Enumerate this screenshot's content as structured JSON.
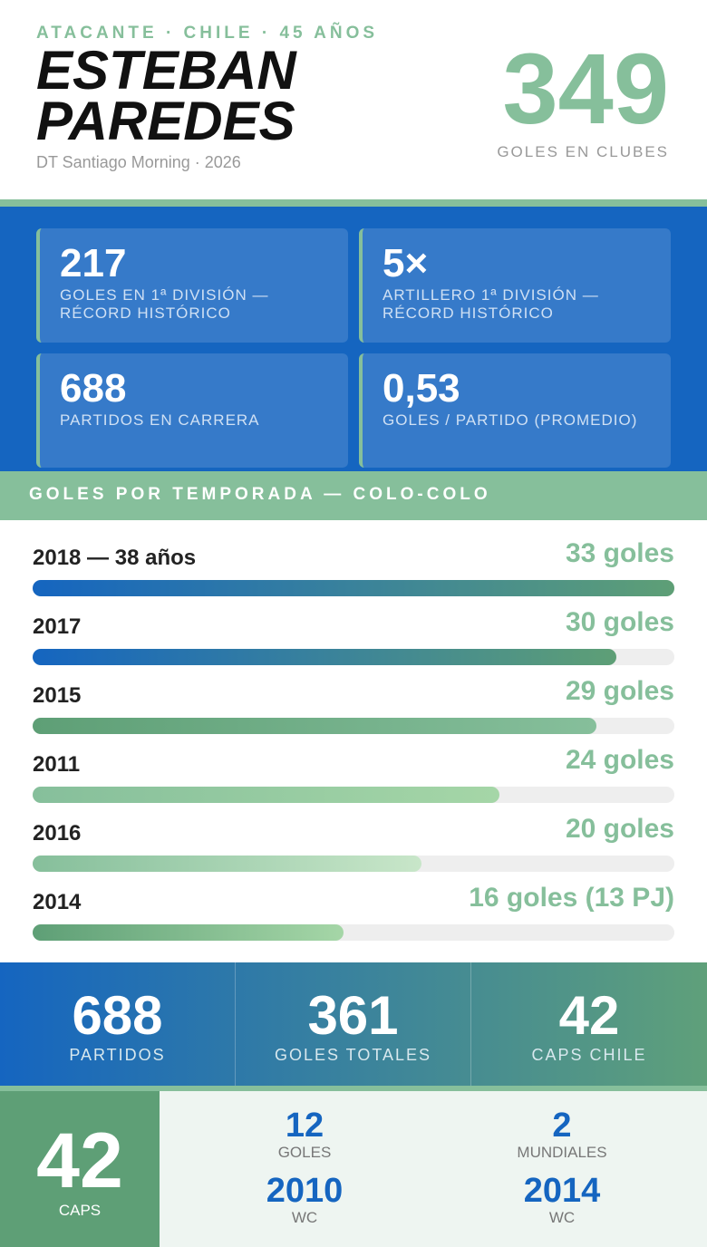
{
  "header": {
    "kicker": "ATACANTE · CHILE · 45 AÑOS",
    "name_line1": "ESTEBAN",
    "name_line2": "PAREDES",
    "subtitle": "DT Santiago Morning · 2026",
    "big_value": "349",
    "big_label": "GOLES EN CLUBES"
  },
  "stats": [
    {
      "value": "217",
      "label": "GOLES EN 1ª DIVISIÓN — RÉCORD HISTÓRICO"
    },
    {
      "value": "5×",
      "label": "ARTILLERO 1ª DIVISIÓN — RÉCORD HISTÓRICO"
    },
    {
      "value": "688",
      "label": "PARTIDOS EN CARRERA"
    },
    {
      "value": "0,53",
      "label": "GOLES / PARTIDO (PROMEDIO)"
    }
  ],
  "chart_data": {
    "type": "bar",
    "title": "GOLES POR TEMPORADA — COLO-COLO",
    "categories": [
      "2018 — 38 años",
      "2017",
      "2015",
      "2011",
      "2016",
      "2014"
    ],
    "values": [
      33,
      30,
      29,
      24,
      20,
      16
    ],
    "value_labels": [
      "33 goles",
      "30 goles",
      "29 goles",
      "24 goles",
      "20 goles",
      "16 goles (13 PJ)"
    ],
    "xlim": [
      0,
      33
    ],
    "colors": [
      [
        "#1565c0",
        "#5e9f76"
      ],
      [
        "#1565c0",
        "#5e9f76"
      ],
      [
        "#5e9f76",
        "#86bf9b"
      ],
      [
        "#86bf9b",
        "#a5d6a7"
      ],
      [
        "#86bf9b",
        "#c8e6c9"
      ],
      [
        "#5e9f76",
        "#a5d6a7"
      ]
    ]
  },
  "totals": [
    {
      "value": "688",
      "label": "PARTIDOS"
    },
    {
      "value": "361",
      "label": "GOLES TOTALES"
    },
    {
      "value": "42",
      "label": "CAPS CHILE"
    }
  ],
  "national": {
    "caps_value": "42",
    "caps_label": "CAPS",
    "items": [
      {
        "value": "12",
        "label": "GOLES"
      },
      {
        "value": "2",
        "label": "MUNDIALES"
      },
      {
        "value": "2010",
        "label": "WC"
      },
      {
        "value": "2014",
        "label": "WC"
      }
    ]
  }
}
